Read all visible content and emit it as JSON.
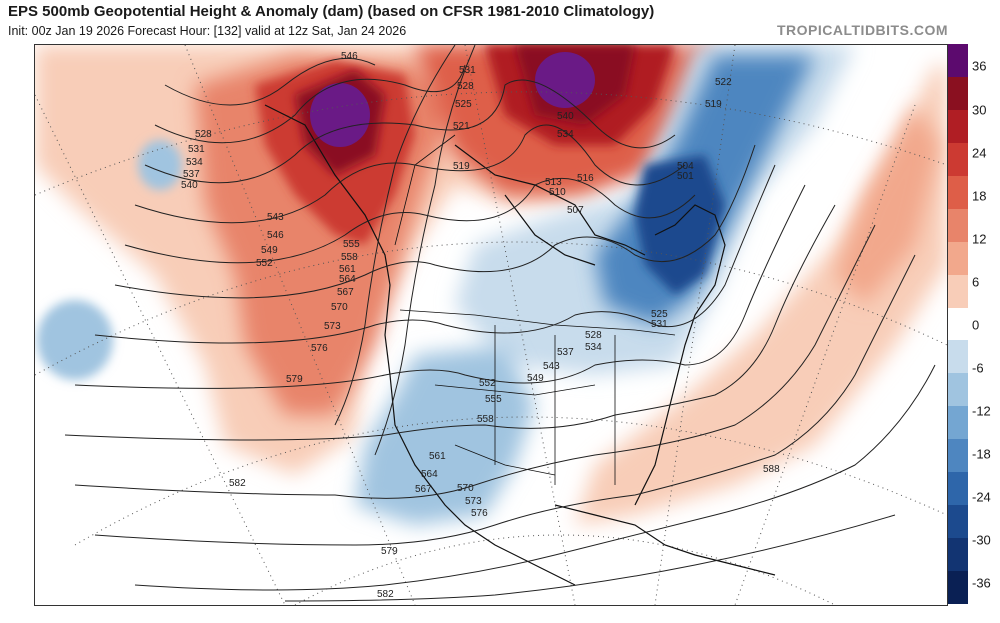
{
  "header": {
    "title": "EPS 500mb Geopotential Height & Anomaly (dam) (based on CFSR 1981-2010 Climatology)",
    "subtitle": "Init: 00z Jan 19 2026   Forecast Hour: [132]   valid at 12z Sat, Jan 24 2026",
    "credit": "TROPICALTIDBITS.COM"
  },
  "colorbar": {
    "labels": [
      "36",
      "30",
      "24",
      "18",
      "12",
      "6",
      "0",
      "-6",
      "-12",
      "-18",
      "-24",
      "-30",
      "-36"
    ],
    "colors": [
      "#5c0a6e",
      "#8a1020",
      "#b01e24",
      "#cc3a32",
      "#de5e48",
      "#e8846a",
      "#f2a88c",
      "#f8cdb8",
      "#ffffff",
      "#c8dcec",
      "#a0c4e0",
      "#74a6d2",
      "#4e86c0",
      "#2e66aa",
      "#1c4a8e",
      "#123472",
      "#0a2054"
    ]
  },
  "map": {
    "contour_labels": [
      "546",
      "531",
      "528",
      "525",
      "521",
      "519",
      "513",
      "516",
      "510",
      "507",
      "540",
      "534",
      "528",
      "531",
      "534",
      "537",
      "540",
      "543",
      "546",
      "549",
      "552",
      "555",
      "558",
      "561",
      "564",
      "567",
      "570",
      "573",
      "576",
      "579",
      "522",
      "519",
      "504",
      "501",
      "525",
      "531",
      "528",
      "534",
      "537",
      "543",
      "549",
      "552",
      "555",
      "558",
      "561",
      "564",
      "567",
      "570",
      "573",
      "576",
      "582",
      "579",
      "582",
      "588"
    ],
    "anomaly_features": [
      "positive-anomaly-alaska-yukon",
      "positive-anomaly-greenland",
      "negative-anomaly-eastern-canada",
      "negative-anomaly-southwest-us",
      "negative-anomaly-hawaii",
      "positive-anomaly-atlantic"
    ]
  }
}
